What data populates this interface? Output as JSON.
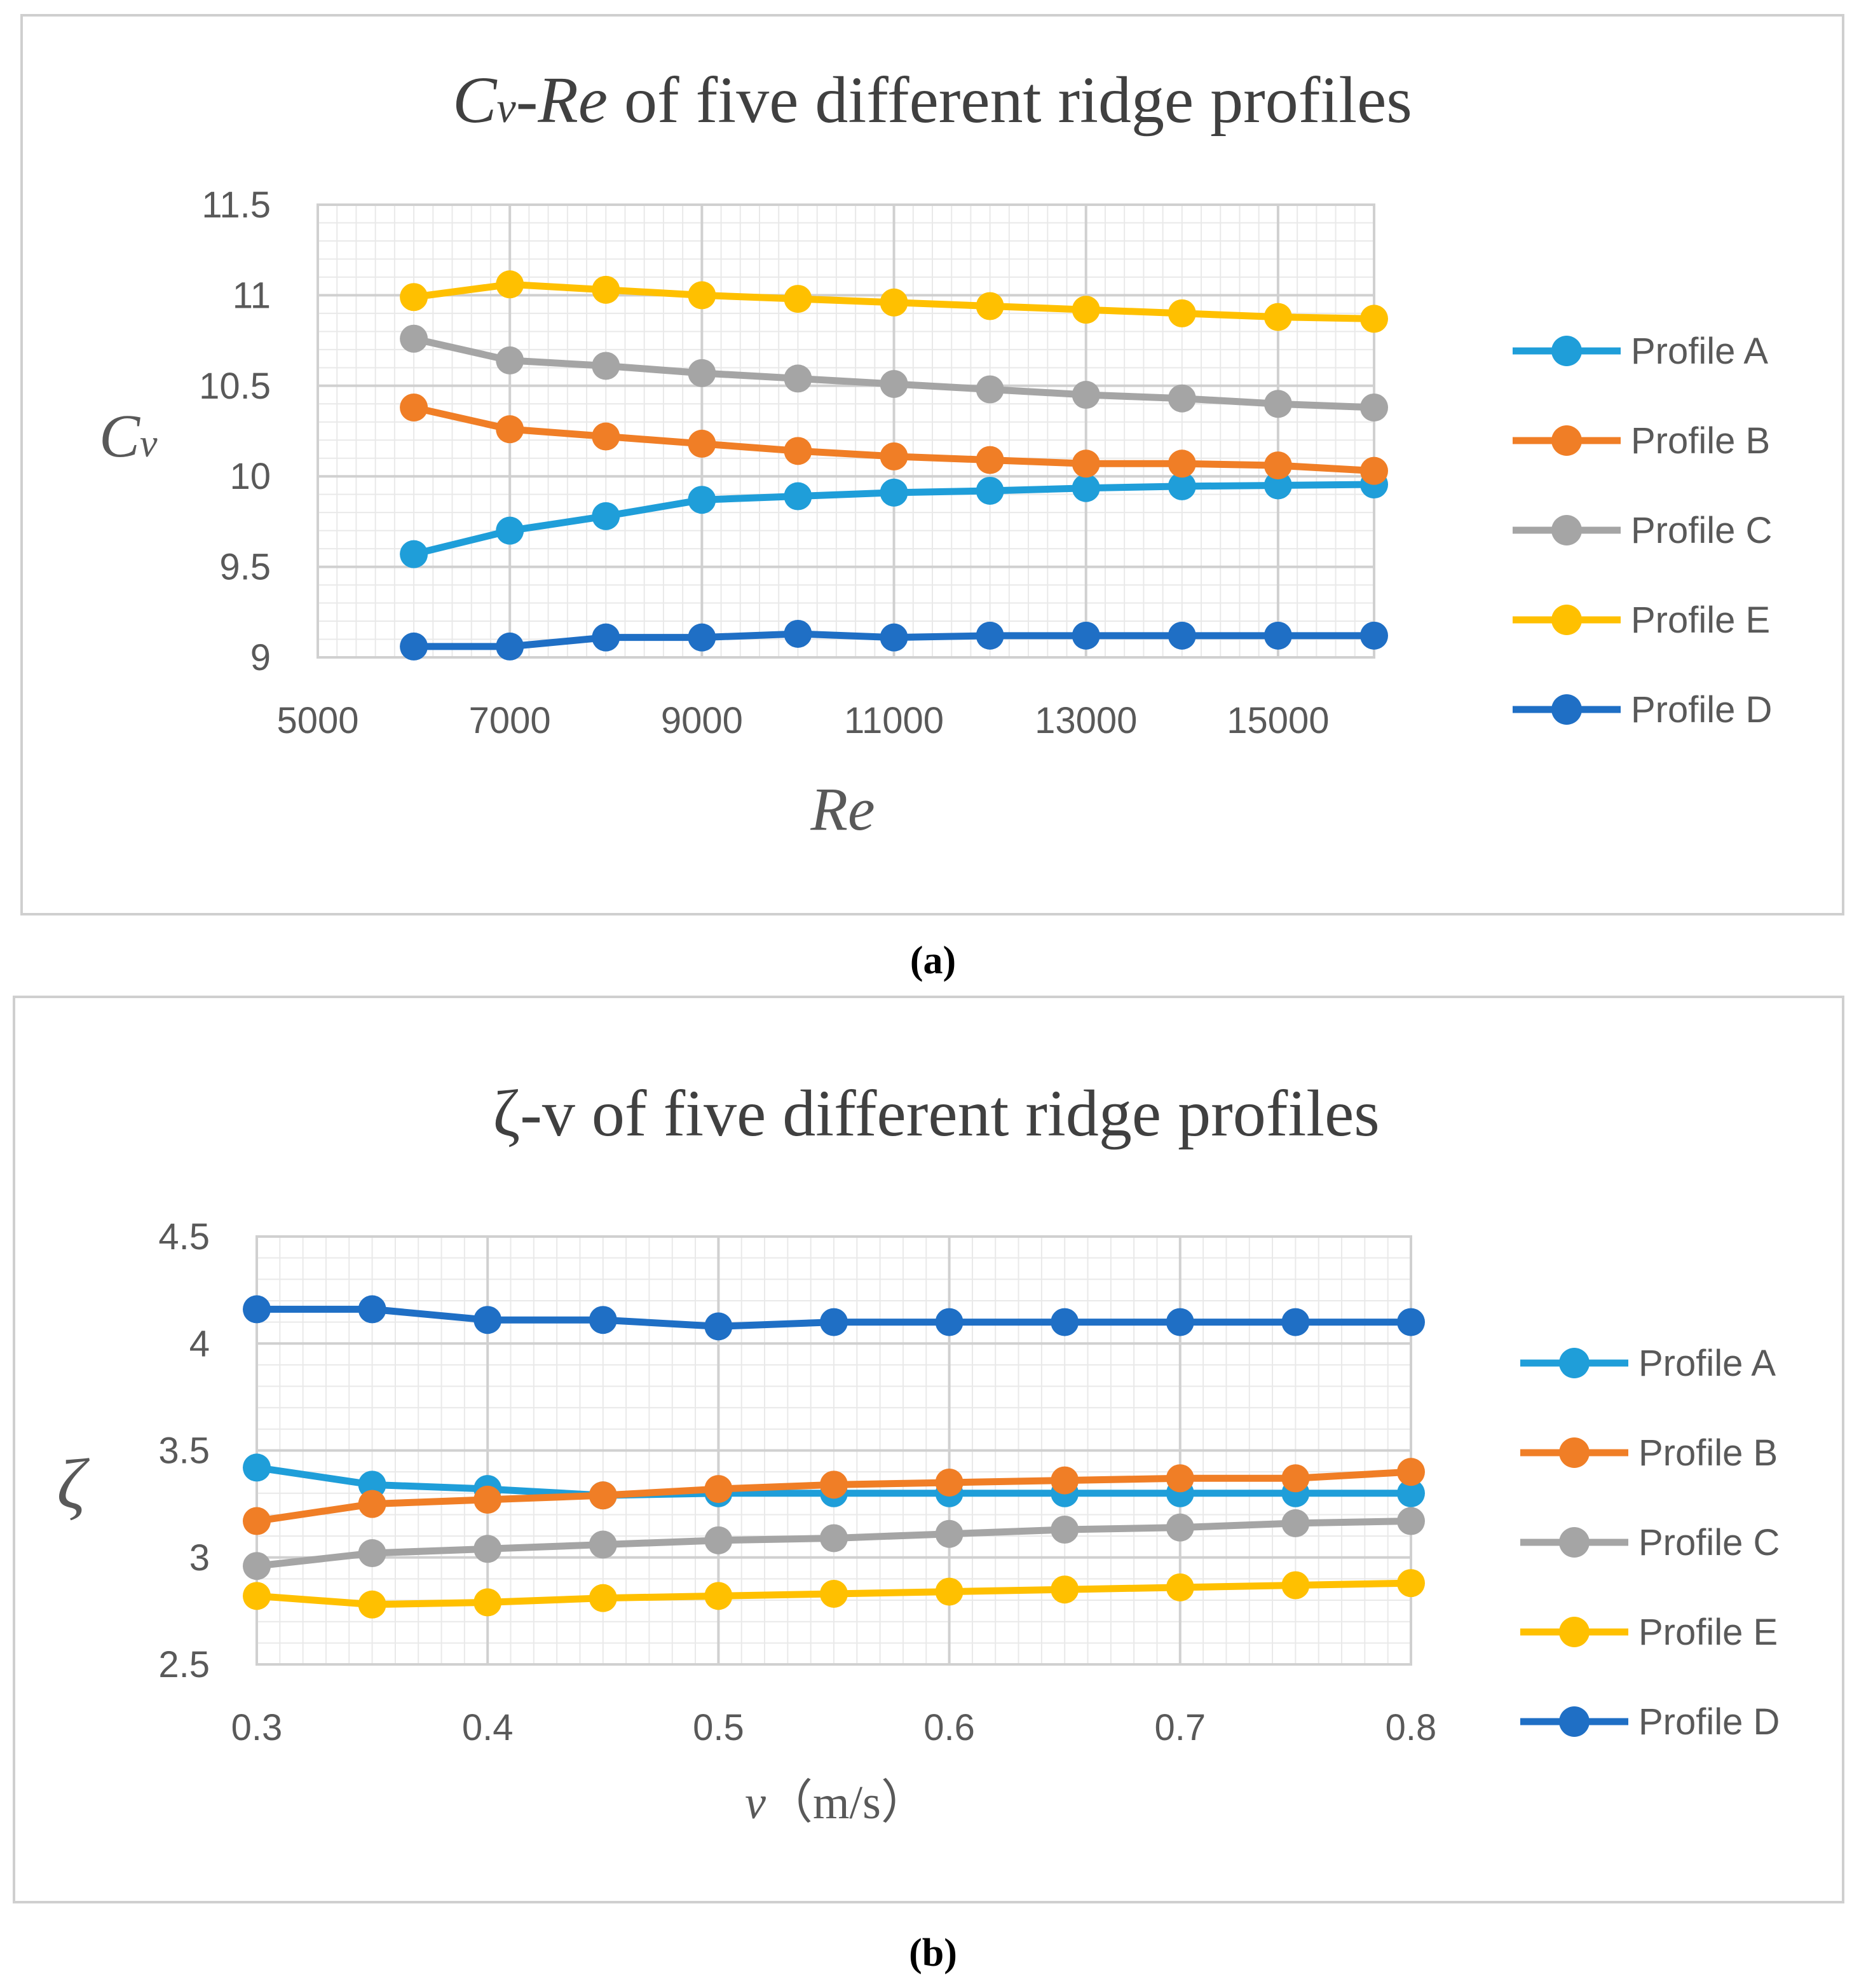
{
  "chart_data": [
    {
      "type": "line",
      "title_main_italic": "C",
      "title_sub_italic": "v",
      "title_dash": "-",
      "title_re_italic": "Re",
      "title_rest": " of five different ridge profiles",
      "xlabel": "Re",
      "ylabel_main": "C",
      "ylabel_sub": "v",
      "caption": "(a)",
      "x": [
        6000,
        7000,
        8000,
        9000,
        10000,
        11000,
        12000,
        13000,
        14000,
        15000,
        16000
      ],
      "xlim": [
        5000,
        16000
      ],
      "ylim": [
        9,
        11.5
      ],
      "x_ticks": [
        "5000",
        "7000",
        "9000",
        "11000",
        "13000",
        "15000"
      ],
      "y_ticks": [
        "9",
        "9.5",
        "10",
        "10.5",
        "11",
        "11.5"
      ],
      "series": [
        {
          "name": "Profile A",
          "color": "#1F9ED9",
          "values": [
            9.57,
            9.7,
            9.78,
            9.87,
            9.89,
            9.91,
            9.92,
            9.935,
            9.945,
            9.95,
            9.955
          ]
        },
        {
          "name": "Profile B",
          "color": "#F07E26",
          "values": [
            10.38,
            10.26,
            10.22,
            10.18,
            10.14,
            10.11,
            10.09,
            10.07,
            10.07,
            10.06,
            10.03
          ]
        },
        {
          "name": "Profile C",
          "color": "#A5A5A5",
          "values": [
            10.76,
            10.64,
            10.61,
            10.57,
            10.54,
            10.51,
            10.48,
            10.45,
            10.43,
            10.4,
            10.38
          ]
        },
        {
          "name": "Profile E",
          "color": "#FFC000",
          "values": [
            10.99,
            11.06,
            11.03,
            11.0,
            10.98,
            10.96,
            10.94,
            10.92,
            10.9,
            10.88,
            10.87
          ]
        },
        {
          "name": "Profile D",
          "color": "#1F6FC5",
          "values": [
            9.06,
            9.06,
            9.11,
            9.11,
            9.13,
            9.11,
            9.12,
            9.12,
            9.12,
            9.12,
            9.12
          ]
        }
      ]
    },
    {
      "type": "line",
      "title": "ζ-v of five different ridge profiles",
      "xlabel_italic": "v",
      "xlabel_units": "（m/s）",
      "ylabel": "ζ",
      "caption": "(b)",
      "x": [
        0.3,
        0.35,
        0.4,
        0.45,
        0.5,
        0.55,
        0.6,
        0.65,
        0.7,
        0.75,
        0.8
      ],
      "xlim": [
        0.3,
        0.8
      ],
      "ylim": [
        2.5,
        4.5
      ],
      "x_ticks": [
        "0.3",
        "0.4",
        "0.5",
        "0.6",
        "0.7",
        "0.8"
      ],
      "y_ticks": [
        "2.5",
        "3",
        "3.5",
        "4",
        "4.5"
      ],
      "series": [
        {
          "name": "Profile A",
          "color": "#1F9ED9",
          "values": [
            3.42,
            3.34,
            3.32,
            3.29,
            3.3,
            3.3,
            3.3,
            3.3,
            3.3,
            3.3,
            3.3
          ]
        },
        {
          "name": "Profile B",
          "color": "#F07E26",
          "values": [
            3.17,
            3.25,
            3.27,
            3.29,
            3.32,
            3.34,
            3.35,
            3.36,
            3.37,
            3.37,
            3.4
          ]
        },
        {
          "name": "Profile C",
          "color": "#A5A5A5",
          "values": [
            2.96,
            3.02,
            3.04,
            3.06,
            3.08,
            3.09,
            3.11,
            3.13,
            3.14,
            3.16,
            3.17
          ]
        },
        {
          "name": "Profile E",
          "color": "#FFC000",
          "values": [
            2.82,
            2.78,
            2.79,
            2.81,
            2.82,
            2.83,
            2.84,
            2.85,
            2.86,
            2.87,
            2.88
          ]
        },
        {
          "name": "Profile D",
          "color": "#1F6FC5",
          "values": [
            4.16,
            4.16,
            4.11,
            4.11,
            4.08,
            4.1,
            4.1,
            4.1,
            4.1,
            4.1,
            4.1
          ]
        }
      ]
    }
  ]
}
